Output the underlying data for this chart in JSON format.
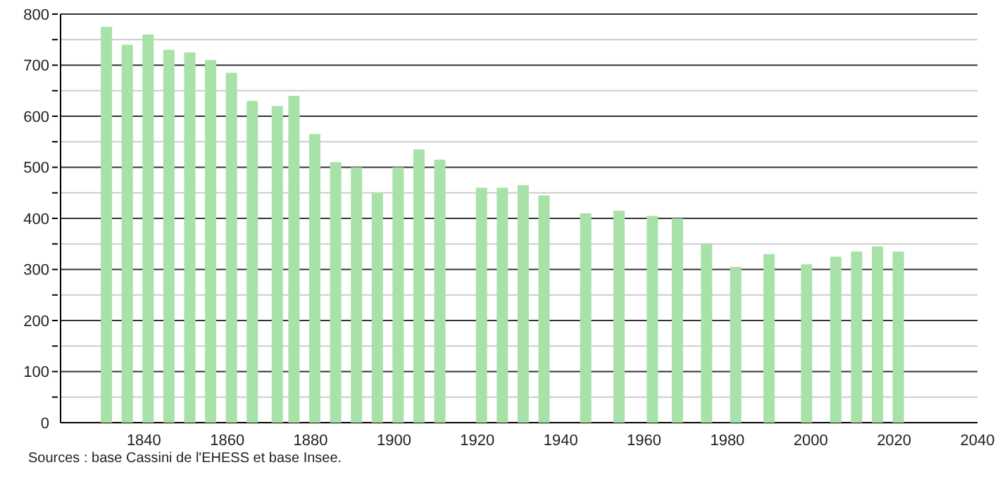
{
  "chart_data": {
    "type": "bar",
    "x": [
      1831,
      1836,
      1841,
      1846,
      1851,
      1856,
      1861,
      1866,
      1872,
      1876,
      1881,
      1886,
      1891,
      1896,
      1901,
      1906,
      1911,
      1921,
      1926,
      1931,
      1936,
      1946,
      1954,
      1962,
      1968,
      1975,
      1982,
      1990,
      1999,
      2006,
      2011,
      2016,
      2021
    ],
    "values": [
      775,
      740,
      760,
      730,
      725,
      710,
      685,
      630,
      620,
      640,
      565,
      510,
      500,
      450,
      500,
      535,
      515,
      460,
      460,
      465,
      445,
      410,
      415,
      405,
      400,
      350,
      305,
      330,
      310,
      325,
      335,
      345,
      335
    ],
    "color": "#a8e2a8",
    "xlim": [
      1820,
      2040
    ],
    "xticks": [
      1840,
      1860,
      1880,
      1900,
      1920,
      1940,
      1960,
      1980,
      2000,
      2020,
      2040
    ],
    "ylim": [
      0,
      800
    ],
    "yticks": [
      0,
      {
        "value": 50,
        "label": null
      },
      100,
      {
        "value": 150,
        "label": null
      },
      200,
      {
        "value": 250,
        "label": null
      },
      300,
      {
        "value": 350,
        "label": null
      },
      400,
      {
        "value": 450,
        "label": null
      },
      500,
      {
        "value": 550,
        "label": null
      },
      600,
      {
        "value": 650,
        "label": null
      },
      700,
      {
        "value": 750,
        "label": null
      },
      800
    ],
    "grid": "y",
    "annotations": [
      "Sources : base Cassini de l'EHESS et base Insee."
    ]
  }
}
